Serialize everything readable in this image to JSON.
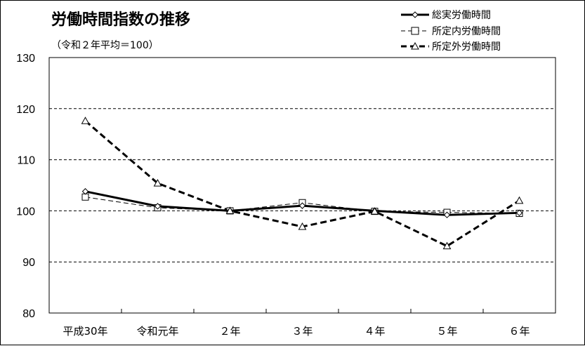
{
  "chart_data": {
    "type": "line",
    "title": "労働時間指数の推移",
    "subtitle": "（令和２年平均＝100）",
    "categories": [
      "平成30年",
      "令和元年",
      "２年",
      "３年",
      "４年",
      "５年",
      "６年"
    ],
    "series": [
      {
        "name": "総実労働時間",
        "values": [
          103.8,
          100.9,
          100.0,
          101.0,
          100.0,
          99.2,
          99.6
        ],
        "color": "#000000",
        "line_style": "solid-thick",
        "marker": "diamond"
      },
      {
        "name": "所定内労働時間",
        "values": [
          102.7,
          100.6,
          100.0,
          101.6,
          99.9,
          99.7,
          99.5
        ],
        "color": "#000000",
        "line_style": "dashed-thin",
        "marker": "square"
      },
      {
        "name": "所定外労働時間",
        "values": [
          117.6,
          105.4,
          100.0,
          96.9,
          99.9,
          93.1,
          102.0
        ],
        "color": "#000000",
        "line_style": "dashed-thick",
        "marker": "triangle"
      }
    ],
    "ylim": [
      80,
      130
    ],
    "yticks": [
      80,
      90,
      100,
      110,
      120,
      130
    ],
    "grid": true,
    "legend_position": "top-right"
  }
}
